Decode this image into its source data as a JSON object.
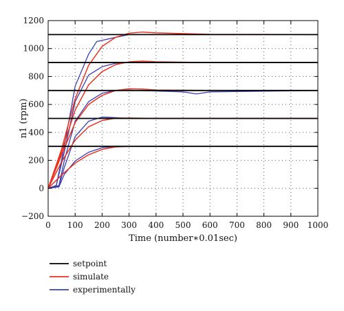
{
  "chart_data": {
    "type": "line",
    "title": "",
    "xlabel": "Time (number∗0.01sec)",
    "ylabel": "n1 (rpm)",
    "xlim": [
      0,
      1000
    ],
    "ylim": [
      -200,
      1200
    ],
    "xticks": [
      0,
      100,
      200,
      300,
      400,
      500,
      600,
      700,
      800,
      900,
      1000
    ],
    "yticks": [
      -200,
      0,
      200,
      400,
      600,
      800,
      1000,
      1200
    ],
    "grid": true,
    "grid_style": "dotted",
    "legend_position": "bottom-left, below plot",
    "setpoints": [
      300,
      500,
      700,
      900,
      1100
    ],
    "series": [
      {
        "name": "setpoint",
        "color": "#000000",
        "lines": [
          {
            "setpoint": 300,
            "x": [
              0,
              1000
            ],
            "y": [
              300,
              300
            ]
          },
          {
            "setpoint": 500,
            "x": [
              0,
              1000
            ],
            "y": [
              500,
              500
            ]
          },
          {
            "setpoint": 700,
            "x": [
              0,
              1000
            ],
            "y": [
              700,
              700
            ]
          },
          {
            "setpoint": 900,
            "x": [
              0,
              1000
            ],
            "y": [
              900,
              900
            ]
          },
          {
            "setpoint": 1100,
            "x": [
              0,
              1000
            ],
            "y": [
              1100,
              1100
            ]
          }
        ]
      },
      {
        "name": "simulate",
        "color": "#e8311e",
        "lines": [
          {
            "setpoint": 300,
            "x": [
              0,
              50,
              100,
              150,
              200,
              250,
              300,
              400,
              600,
              1000
            ],
            "y": [
              0,
              95,
              180,
              240,
              278,
              296,
              300,
              300,
              300,
              300
            ]
          },
          {
            "setpoint": 500,
            "x": [
              0,
              50,
              100,
              150,
              200,
              250,
              300,
              400,
              600,
              1000
            ],
            "y": [
              0,
              190,
              345,
              440,
              485,
              502,
              503,
              500,
              500,
              500
            ]
          },
          {
            "setpoint": 700,
            "x": [
              0,
              50,
              100,
              150,
              200,
              250,
              300,
              350,
              400,
              600,
              1000
            ],
            "y": [
              0,
              240,
              470,
              600,
              665,
              700,
              712,
              710,
              703,
              700,
              700
            ]
          },
          {
            "setpoint": 900,
            "x": [
              0,
              50,
              100,
              150,
              200,
              250,
              300,
              350,
              400,
              600,
              1000
            ],
            "y": [
              0,
              260,
              560,
              740,
              835,
              885,
              905,
              910,
              905,
              900,
              900
            ]
          },
          {
            "setpoint": 1100,
            "x": [
              0,
              50,
              100,
              150,
              200,
              250,
              300,
              350,
              400,
              600,
              1000
            ],
            "y": [
              0,
              280,
              640,
              880,
              1015,
              1080,
              1110,
              1118,
              1112,
              1102,
              1100
            ]
          }
        ]
      },
      {
        "name": "experimentally",
        "color": "#3a3fb0",
        "lines": [
          {
            "setpoint": 300,
            "x": [
              0,
              40,
              60,
              100,
              150,
              200,
              250,
              300,
              1000
            ],
            "y": [
              0,
              10,
              100,
              195,
              258,
              290,
              300,
              300,
              300
            ]
          },
          {
            "setpoint": 500,
            "x": [
              0,
              40,
              60,
              100,
              150,
              200,
              230,
              300,
              1000
            ],
            "y": [
              0,
              15,
              150,
              370,
              480,
              510,
              508,
              500,
              500
            ]
          },
          {
            "setpoint": 700,
            "x": [
              0,
              40,
              60,
              100,
              150,
              200,
              250,
              300,
              500,
              550,
              600,
              1000
            ],
            "y": [
              0,
              20,
              200,
              480,
              620,
              680,
              700,
              702,
              690,
              675,
              690,
              700
            ]
          },
          {
            "setpoint": 900,
            "x": [
              0,
              30,
              60,
              100,
              150,
              200,
              250,
              300,
              1000
            ],
            "y": [
              0,
              20,
              260,
              620,
              810,
              870,
              895,
              900,
              900
            ]
          },
          {
            "setpoint": 1100,
            "x": [
              0,
              30,
              60,
              100,
              150,
              180,
              250,
              300,
              1000
            ],
            "y": [
              0,
              20,
              300,
              730,
              960,
              1050,
              1080,
              1100,
              1100
            ]
          }
        ]
      }
    ]
  }
}
